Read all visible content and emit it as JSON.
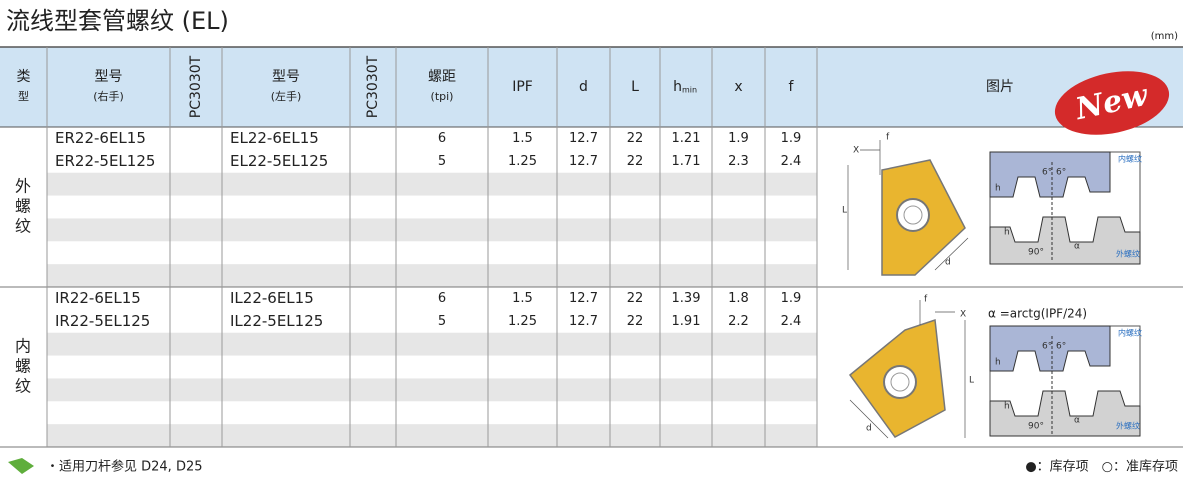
{
  "title": "流线型套管螺纹 (EL)",
  "unit": "(mm)",
  "header": [
    {
      "lines": [
        "类",
        "型"
      ]
    },
    {
      "lines": [
        "型号",
        "(右手)"
      ]
    },
    {
      "lines": [
        "PC3030T"
      ],
      "vertical": true
    },
    {
      "lines": [
        "型号",
        "(左手)"
      ]
    },
    {
      "lines": [
        "PC3030T"
      ],
      "vertical": true
    },
    {
      "lines": [
        "螺距",
        "(tpi)"
      ]
    },
    {
      "lines": [
        "IPF"
      ]
    },
    {
      "lines": [
        "d"
      ]
    },
    {
      "lines": [
        "L"
      ]
    },
    {
      "lines": [
        "h"
      ],
      "sub": "min"
    },
    {
      "lines": [
        "x"
      ]
    },
    {
      "lines": [
        "f"
      ]
    },
    {
      "lines": [
        "图片"
      ]
    }
  ],
  "badge": "New",
  "sections": [
    {
      "label": [
        "外",
        "螺",
        "纹"
      ],
      "rows": [
        [
          "ER22-6EL15",
          "EL22-6EL15",
          "6",
          "1.5",
          "12.7",
          "22",
          "1.21",
          "1.9",
          "1.9"
        ],
        [
          "ER22-5EL125",
          "EL22-5EL125",
          "5",
          "1.25",
          "12.7",
          "22",
          "1.71",
          "2.3",
          "2.4"
        ]
      ]
    },
    {
      "label": [
        "内",
        "螺",
        "纹"
      ],
      "rows": [
        [
          "IR22-6EL15",
          "IL22-6EL15",
          "6",
          "1.5",
          "12.7",
          "22",
          "1.39",
          "1.8",
          "1.9"
        ],
        [
          "IR22-5EL125",
          "IL22-5EL125",
          "5",
          "1.25",
          "12.7",
          "22",
          "1.91",
          "2.2",
          "2.4"
        ]
      ]
    }
  ],
  "diagram_external": [
    "X",
    "f",
    "L",
    "d",
    "6°",
    "6°",
    "h",
    "h",
    "90°",
    "α",
    "内螺纹",
    "外螺纹"
  ],
  "diagram_internal": [
    "f",
    "X",
    "L",
    "d",
    "α =arctg(IPF/24)",
    "6°",
    "6°",
    "h",
    "h",
    "90°",
    "α",
    "内螺纹",
    "外螺纹"
  ],
  "footer": {
    "note": "・适用刀杆参见 D24, D25",
    "legend": "●：库存项　○：准库存项"
  }
}
